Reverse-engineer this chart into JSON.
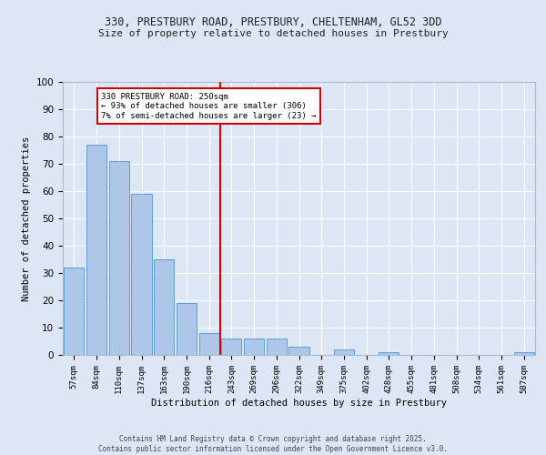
{
  "title_line1": "330, PRESTBURY ROAD, PRESTBURY, CHELTENHAM, GL52 3DD",
  "title_line2": "Size of property relative to detached houses in Prestbury",
  "xlabel": "Distribution of detached houses by size in Prestbury",
  "ylabel": "Number of detached properties",
  "categories": [
    "57sqm",
    "84sqm",
    "110sqm",
    "137sqm",
    "163sqm",
    "190sqm",
    "216sqm",
    "243sqm",
    "269sqm",
    "296sqm",
    "322sqm",
    "349sqm",
    "375sqm",
    "402sqm",
    "428sqm",
    "455sqm",
    "481sqm",
    "508sqm",
    "534sqm",
    "561sqm",
    "587sqm"
  ],
  "values": [
    32,
    77,
    71,
    59,
    35,
    19,
    8,
    6,
    6,
    6,
    3,
    0,
    2,
    0,
    1,
    0,
    0,
    0,
    0,
    0,
    1
  ],
  "bar_color": "#aec6e8",
  "bar_edge_color": "#5a9fd4",
  "background_color": "#dce6f5",
  "fig_background_color": "#dce6f5",
  "grid_color": "#ffffff",
  "vline_position": 6.5,
  "vline_color": "#cc0000",
  "annotation_text": "330 PRESTBURY ROAD: 250sqm\n← 93% of detached houses are smaller (306)\n7% of semi-detached houses are larger (23) →",
  "annotation_box_color": "#ffffff",
  "annotation_box_edge": "#cc0000",
  "footer_line1": "Contains HM Land Registry data © Crown copyright and database right 2025.",
  "footer_line2": "Contains public sector information licensed under the Open Government Licence v3.0.",
  "ylim": [
    0,
    100
  ],
  "yticks": [
    0,
    10,
    20,
    30,
    40,
    50,
    60,
    70,
    80,
    90,
    100
  ]
}
